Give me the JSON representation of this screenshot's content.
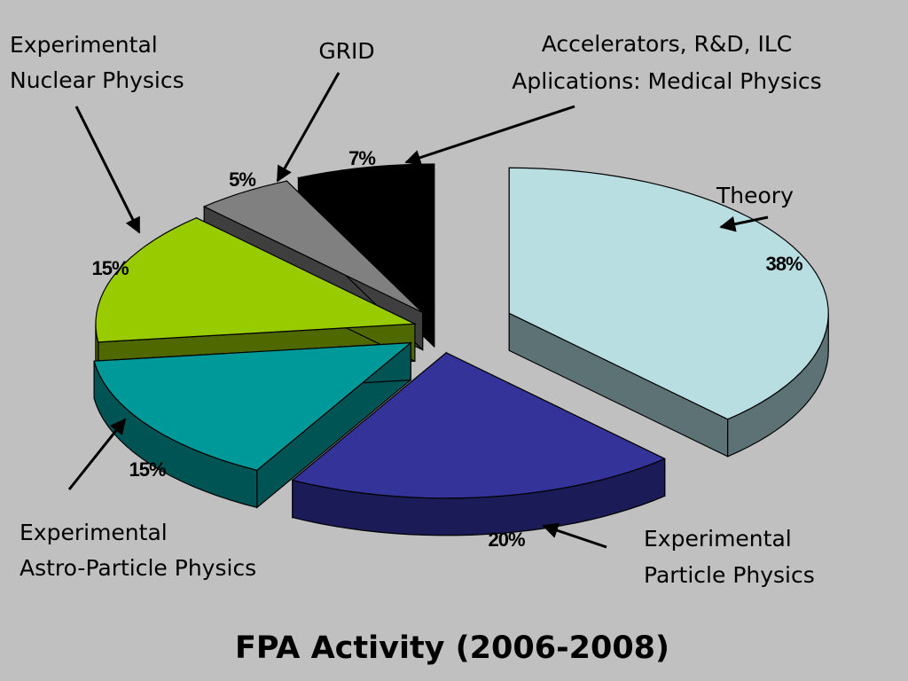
{
  "chart_data": {
    "type": "pie",
    "title": "FPA Activity (2006-2008)",
    "slices": [
      {
        "label": [
          "Theory"
        ],
        "value": 38,
        "pct_label": "38%",
        "color": "#b8dee2",
        "side_color": "#5d7275"
      },
      {
        "label": [
          "Experimental",
          "Particle Physics"
        ],
        "value": 20,
        "pct_label": "20%",
        "color": "#333399",
        "side_color": "#1b1b57"
      },
      {
        "label": [
          "Experimental",
          "Astro-Particle Physics"
        ],
        "value": 15,
        "pct_label": "15%",
        "color": "#009999",
        "side_color": "#005454"
      },
      {
        "label": [
          "Experimental",
          "Nuclear Physics"
        ],
        "value": 15,
        "pct_label": "15%",
        "color": "#99cc00",
        "side_color": "#4f6800"
      },
      {
        "label": [
          "GRID"
        ],
        "value": 5,
        "pct_label": "5%",
        "color": "#808080",
        "side_color": "#3f3f3f"
      },
      {
        "label": [
          "Accelerators, R&D, ILC",
          "Aplications: Medical Physics"
        ],
        "value": 7,
        "pct_label": "7%",
        "color": "#000000",
        "side_color": "#000000"
      }
    ],
    "legend": "none",
    "labels": "callouts with arrows"
  }
}
